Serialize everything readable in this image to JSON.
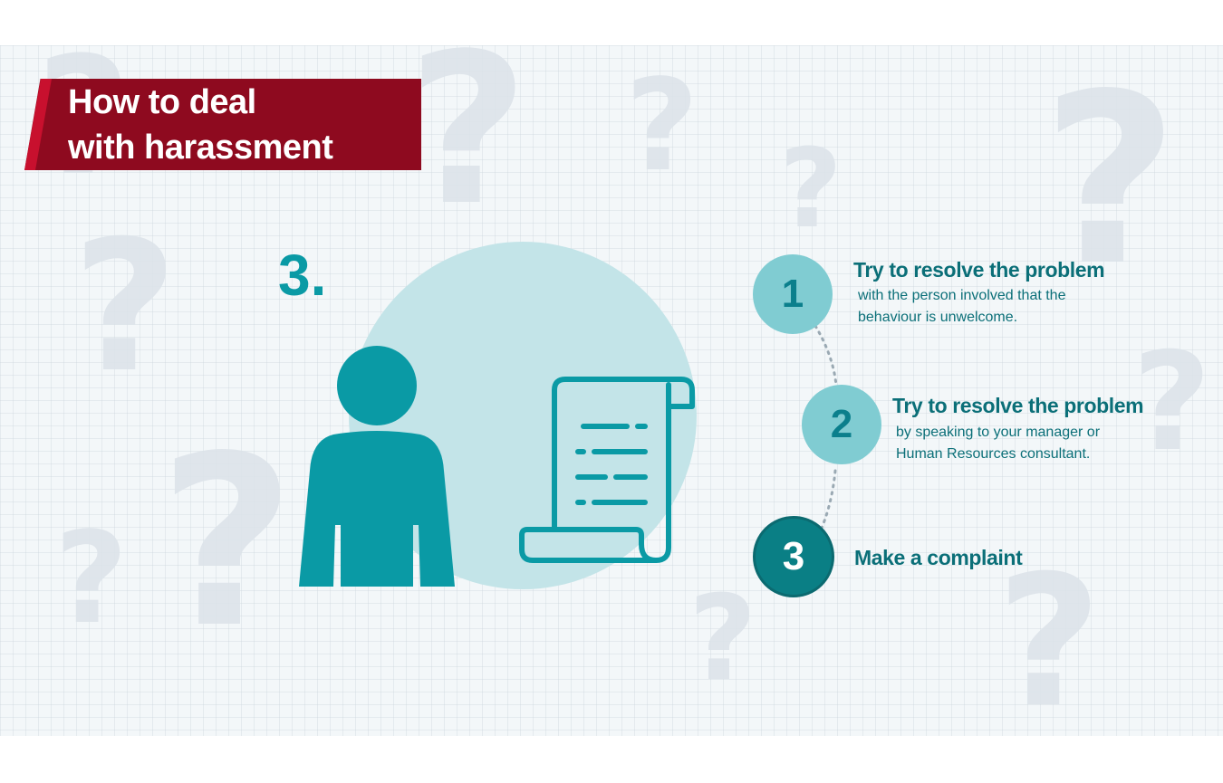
{
  "banner": {
    "title_line1": "How to deal",
    "title_line2": "with harassment"
  },
  "current_step_label": "3.",
  "steps": [
    {
      "number": "1",
      "title": "Try to resolve the problem",
      "description_line1": "with the person involved that the",
      "description_line2": "behaviour is unwelcome."
    },
    {
      "number": "2",
      "title": "Try to resolve the problem",
      "description_line1": "by speaking to your manager or",
      "description_line2": "Human Resources consultant."
    },
    {
      "number": "3",
      "title": "Make a complaint"
    }
  ],
  "colors": {
    "banner": "#8e0a1f",
    "banner_accent": "#c8102e",
    "teal": "#0a9aa5",
    "teal_dark": "#0a7f85",
    "teal_light": "#80ccd2",
    "circle_bg": "#c3e4e8",
    "text": "#0b6f78"
  },
  "icons": [
    "question-mark-icon",
    "person-icon",
    "document-scroll-icon"
  ]
}
